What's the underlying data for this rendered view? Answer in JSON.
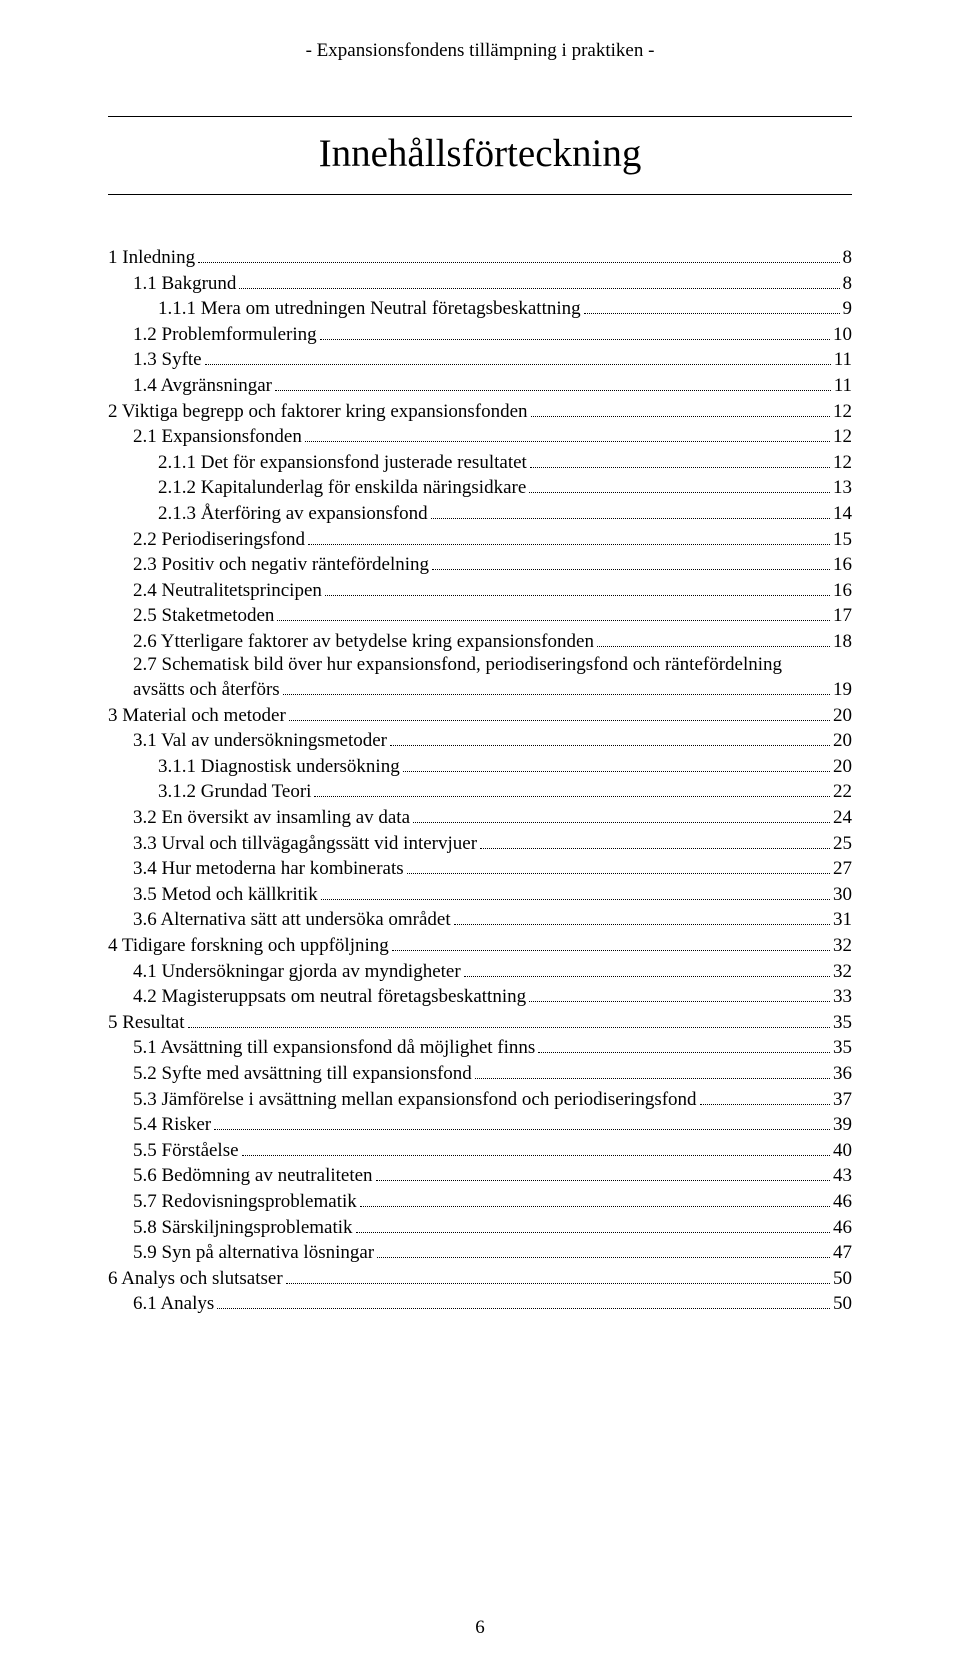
{
  "running_header": "- Expansionsfondens tillämpning i praktiken -",
  "title": "Innehållsförteckning",
  "footer_page": "6",
  "toc": [
    {
      "indent": 0,
      "label": "1 Inledning",
      "page": "8"
    },
    {
      "indent": 1,
      "label": "1.1 Bakgrund",
      "page": "8"
    },
    {
      "indent": 2,
      "label": "1.1.1 Mera om utredningen Neutral företagsbeskattning",
      "page": "9"
    },
    {
      "indent": 1,
      "label": "1.2 Problemformulering",
      "page": "10"
    },
    {
      "indent": 1,
      "label": "1.3 Syfte",
      "page": "11"
    },
    {
      "indent": 1,
      "label": "1.4 Avgränsningar",
      "page": "11"
    },
    {
      "indent": 0,
      "label": "2 Viktiga begrepp och faktorer kring expansionsfonden",
      "page": "12"
    },
    {
      "indent": 1,
      "label": "2.1 Expansionsfonden",
      "page": "12"
    },
    {
      "indent": 2,
      "label": "2.1.1 Det för expansionsfond justerade resultatet",
      "page": "12"
    },
    {
      "indent": 2,
      "label": "2.1.2 Kapitalunderlag för enskilda näringsidkare",
      "page": "13"
    },
    {
      "indent": 2,
      "label": "2.1.3 Återföring av expansionsfond",
      "page": "14"
    },
    {
      "indent": 1,
      "label": "2.2 Periodiseringsfond",
      "page": "15"
    },
    {
      "indent": 1,
      "label": "2.3 Positiv och negativ räntefördelning",
      "page": "16"
    },
    {
      "indent": 1,
      "label": "2.4 Neutralitetsprincipen",
      "page": "16"
    },
    {
      "indent": 1,
      "label": "2.5 Staketmetoden",
      "page": "17"
    },
    {
      "indent": 1,
      "label": "2.6 Ytterligare faktorer av betydelse kring expansionsfonden",
      "page": "18"
    },
    {
      "indent": 1,
      "label": "2.7 Schematisk bild över hur expansionsfond, periodiseringsfond och räntefördelning",
      "wrap_second": "avsätts och återförs",
      "page": "19"
    },
    {
      "indent": 0,
      "label": "3 Material och metoder",
      "page": "20"
    },
    {
      "indent": 1,
      "label": "3.1 Val av undersökningsmetoder",
      "page": "20"
    },
    {
      "indent": 2,
      "label": "3.1.1 Diagnostisk undersökning",
      "page": "20"
    },
    {
      "indent": 2,
      "label": "3.1.2 Grundad Teori",
      "page": "22"
    },
    {
      "indent": 1,
      "label": "3.2 En översikt av insamling av data",
      "page": "24"
    },
    {
      "indent": 1,
      "label": "3.3 Urval och tillvägagångssätt vid intervjuer",
      "page": "25"
    },
    {
      "indent": 1,
      "label": "3.4 Hur metoderna har kombinerats",
      "page": "27"
    },
    {
      "indent": 1,
      "label": "3.5 Metod och källkritik",
      "page": "30"
    },
    {
      "indent": 1,
      "label": "3.6 Alternativa sätt att undersöka området",
      "page": "31"
    },
    {
      "indent": 0,
      "label": "4 Tidigare forskning och uppföljning",
      "page": "32"
    },
    {
      "indent": 1,
      "label": "4.1 Undersökningar gjorda av myndigheter",
      "page": "32"
    },
    {
      "indent": 1,
      "label": "4.2 Magisteruppsats om neutral företagsbeskattning",
      "page": "33"
    },
    {
      "indent": 0,
      "label": "5 Resultat",
      "page": "35"
    },
    {
      "indent": 1,
      "label": "5.1 Avsättning till expansionsfond då möjlighet finns",
      "page": "35"
    },
    {
      "indent": 1,
      "label": "5.2 Syfte med avsättning till expansionsfond",
      "page": "36"
    },
    {
      "indent": 1,
      "label": "5.3 Jämförelse i avsättning mellan expansionsfond och periodiseringsfond",
      "page": "37"
    },
    {
      "indent": 1,
      "label": "5.4 Risker",
      "page": "39"
    },
    {
      "indent": 1,
      "label": "5.5 Förståelse",
      "page": "40"
    },
    {
      "indent": 1,
      "label": "5.6 Bedömning av neutraliteten",
      "page": "43"
    },
    {
      "indent": 1,
      "label": "5.7 Redovisningsproblematik",
      "page": "46"
    },
    {
      "indent": 1,
      "label": "5.8 Särskiljningsproblematik",
      "page": "46"
    },
    {
      "indent": 1,
      "label": "5.9 Syn på alternativa lösningar",
      "page": "47"
    },
    {
      "indent": 0,
      "label": "6 Analys och slutsatser",
      "page": "50"
    },
    {
      "indent": 1,
      "label": "6.1 Analys",
      "page": "50"
    }
  ]
}
